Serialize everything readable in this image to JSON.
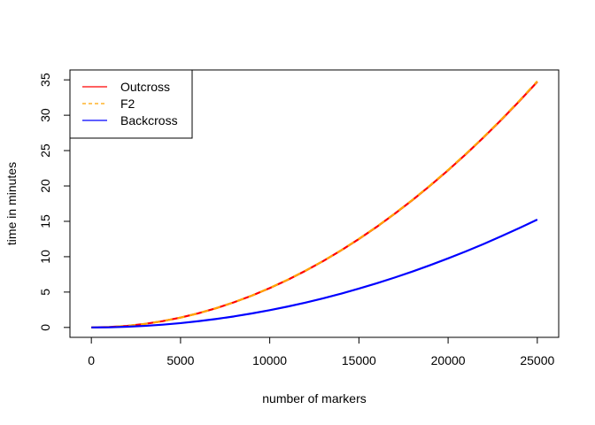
{
  "chart_data": {
    "type": "line",
    "title": "",
    "xlabel": "number of markers",
    "ylabel": "time in minutes",
    "xlim": [
      -1200,
      26200
    ],
    "ylim": [
      -1.4,
      36.4
    ],
    "x_ticks": [
      0,
      5000,
      10000,
      15000,
      20000,
      25000
    ],
    "x_tick_labels": [
      "0",
      "5000",
      "10000",
      "15000",
      "20000",
      "25000"
    ],
    "y_ticks": [
      0,
      5,
      10,
      15,
      20,
      25,
      30,
      35
    ],
    "y_tick_labels": [
      "0",
      "5",
      "10",
      "15",
      "20",
      "25",
      "30",
      "35"
    ],
    "grid": false,
    "legend_position": "top-left",
    "x": [
      0,
      1000,
      2000,
      3000,
      4000,
      5000,
      6000,
      7000,
      8000,
      9000,
      10000,
      11000,
      12000,
      13000,
      14000,
      15000,
      16000,
      17000,
      18000,
      19000,
      20000,
      21000,
      22000,
      23000,
      24000,
      25000
    ],
    "series": [
      {
        "name": "Outcross",
        "color": "#ff0000",
        "dash": "solid",
        "values": [
          0.0,
          0.06,
          0.22,
          0.5,
          0.89,
          1.39,
          2.0,
          2.72,
          3.56,
          4.5,
          5.56,
          6.72,
          8.0,
          9.39,
          10.89,
          12.5,
          14.22,
          16.06,
          18.0,
          20.06,
          22.22,
          24.5,
          26.89,
          29.39,
          32.0,
          34.72
        ]
      },
      {
        "name": "F2",
        "color": "#ffa500",
        "dash": "dashed",
        "values": [
          0.0,
          0.06,
          0.22,
          0.5,
          0.89,
          1.39,
          2.0,
          2.73,
          3.56,
          4.51,
          5.57,
          6.74,
          8.02,
          9.41,
          10.91,
          12.53,
          14.25,
          16.09,
          18.04,
          20.1,
          22.27,
          24.55,
          26.94,
          29.45,
          32.07,
          34.8
        ]
      },
      {
        "name": "Backcross",
        "color": "#0000ff",
        "dash": "solid",
        "values": [
          0.0,
          0.02,
          0.1,
          0.22,
          0.39,
          0.61,
          0.88,
          1.2,
          1.56,
          1.98,
          2.44,
          2.95,
          3.51,
          4.12,
          4.78,
          5.49,
          6.24,
          7.05,
          7.9,
          8.81,
          9.76,
          10.76,
          11.81,
          12.91,
          14.05,
          15.25
        ]
      }
    ]
  }
}
